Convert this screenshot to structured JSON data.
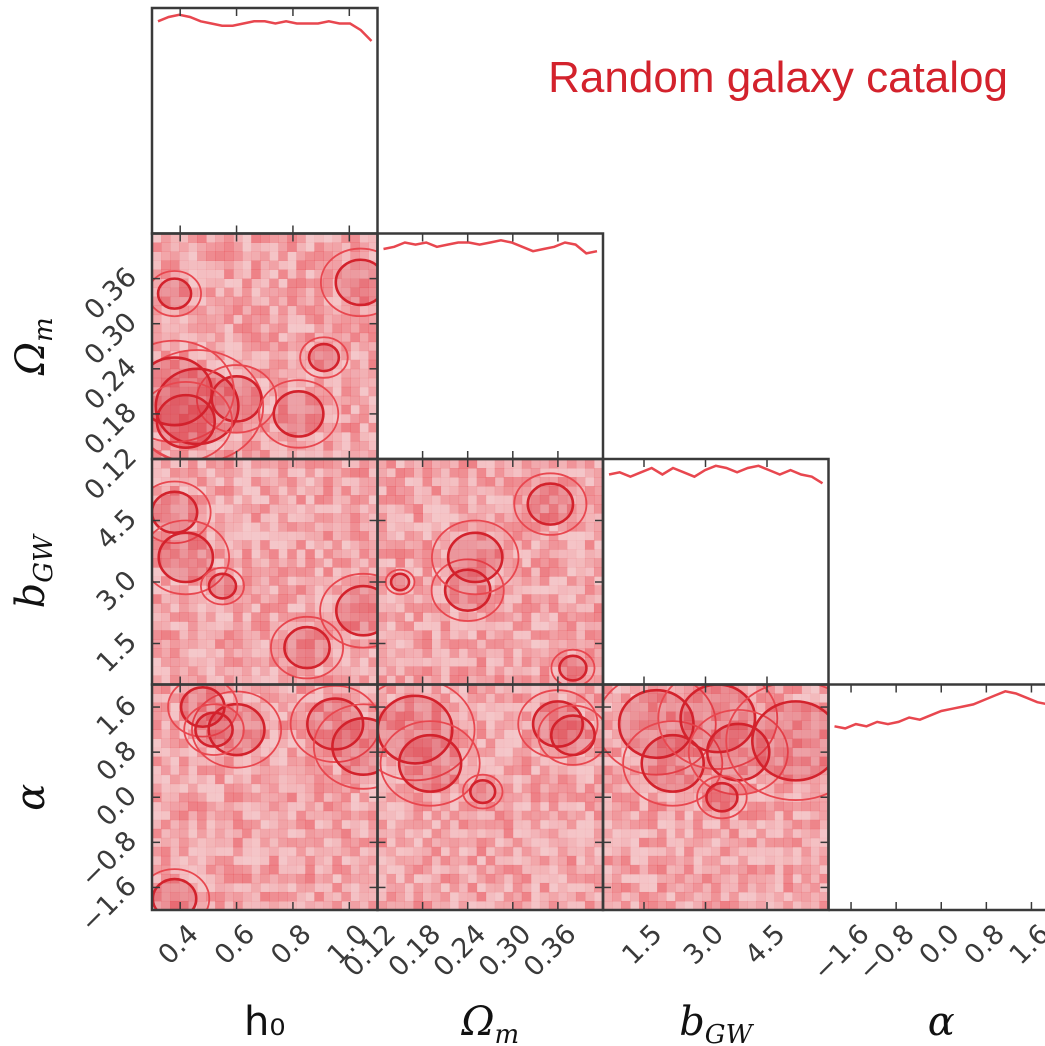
{
  "chart_data": {
    "type": "corner",
    "legend": "Random galaxy catalog",
    "color": "#e8474f",
    "contour_dark": "#d3222c",
    "params": [
      {
        "name": "h0",
        "range": [
          0.3,
          1.1
        ],
        "ticks": [
          0.4,
          0.6,
          0.8,
          1.0
        ],
        "tick_labels": [
          "0.4",
          "0.6",
          "0.8",
          "1.0"
        ]
      },
      {
        "name": "Omega_m",
        "range": [
          0.12,
          0.42
        ],
        "ticks": [
          0.12,
          0.18,
          0.24,
          0.3,
          0.36
        ],
        "tick_labels": [
          "0.12",
          "0.18",
          "0.24",
          "0.30",
          "0.36"
        ]
      },
      {
        "name": "b_GW",
        "range": [
          0.5,
          6.0
        ],
        "ticks": [
          1.5,
          3.0,
          4.5
        ],
        "tick_labels": [
          "1.5",
          "3.0",
          "4.5"
        ]
      },
      {
        "name": "alpha",
        "range": [
          -2.0,
          2.0
        ],
        "ticks": [
          -1.6,
          -0.8,
          0.0,
          0.8,
          1.6
        ],
        "tick_labels": [
          "−1.6",
          "−0.8",
          "0.0",
          "0.8",
          "1.6"
        ]
      }
    ],
    "axis_labels": {
      "x": [
        "h₀",
        "Ω",
        "b",
        "α"
      ],
      "x_subscripts": [
        "",
        "m",
        "GW",
        ""
      ],
      "y": [
        "Ω",
        "b",
        "α"
      ],
      "y_subscripts": [
        "m",
        "GW",
        ""
      ]
    },
    "marginals": [
      [
        0.97,
        0.99,
        1.0,
        0.99,
        0.97,
        0.96,
        0.95,
        0.95,
        0.96,
        0.97,
        0.97,
        0.96,
        0.97,
        0.96,
        0.96,
        0.96,
        0.97,
        0.96,
        0.96,
        0.93,
        0.88
      ],
      [
        0.96,
        0.97,
        0.99,
        0.98,
        0.99,
        0.97,
        0.98,
        0.99,
        0.99,
        0.98,
        0.99,
        1.0,
        0.99,
        0.97,
        0.95,
        0.96,
        0.97,
        0.99,
        0.98,
        0.94,
        0.95
      ],
      [
        0.96,
        0.97,
        0.95,
        0.97,
        0.99,
        0.96,
        0.99,
        0.97,
        0.95,
        0.98,
        1.0,
        0.99,
        0.97,
        0.99,
        1.0,
        0.98,
        0.96,
        0.98,
        0.96,
        0.95,
        0.92
      ],
      [
        0.84,
        0.83,
        0.85,
        0.84,
        0.86,
        0.85,
        0.86,
        0.88,
        0.87,
        0.89,
        0.91,
        0.92,
        0.93,
        0.94,
        0.96,
        0.98,
        1.0,
        0.99,
        0.97,
        0.95,
        0.94
      ]
    ],
    "contours": [
      {
        "row": 1,
        "col": 0,
        "x": [
          0.46,
          0.6
        ],
        "y": [
          0.19,
          0.2
        ],
        "r": [
          0.05,
          0.03
        ]
      },
      {
        "row": 1,
        "col": 0,
        "x": [
          0.38
        ],
        "y": [
          0.34
        ],
        "r": [
          0.02
        ]
      },
      {
        "row": 1,
        "col": 0,
        "x": [
          1.04
        ],
        "y": [
          0.355
        ],
        "r": [
          0.03
        ]
      },
      {
        "row": 1,
        "col": 0,
        "x": [
          0.38,
          0.42
        ],
        "y": [
          0.21,
          0.17
        ],
        "r": [
          0.045,
          0.035
        ]
      },
      {
        "row": 1,
        "col": 0,
        "x": [
          0.82
        ],
        "y": [
          0.18
        ],
        "r": [
          0.03
        ]
      },
      {
        "row": 1,
        "col": 0,
        "x": [
          0.91
        ],
        "y": [
          0.255
        ],
        "r": [
          0.018
        ]
      },
      {
        "row": 2,
        "col": 0,
        "x": [
          0.38,
          0.42
        ],
        "y": [
          4.7,
          3.6
        ],
        "r": [
          0.5,
          0.6
        ]
      },
      {
        "row": 2,
        "col": 0,
        "x": [
          0.55
        ],
        "y": [
          2.9
        ],
        "r": [
          0.3
        ]
      },
      {
        "row": 2,
        "col": 0,
        "x": [
          0.85
        ],
        "y": [
          1.4
        ],
        "r": [
          0.5
        ]
      },
      {
        "row": 2,
        "col": 0,
        "x": [
          1.05
        ],
        "y": [
          2.3
        ],
        "r": [
          0.6
        ]
      },
      {
        "row": 2,
        "col": 1,
        "x": [
          0.24,
          0.25
        ],
        "y": [
          2.8,
          3.6
        ],
        "r": [
          0.5,
          0.6
        ]
      },
      {
        "row": 2,
        "col": 1,
        "x": [
          0.35
        ],
        "y": [
          4.9
        ],
        "r": [
          0.5
        ]
      },
      {
        "row": 2,
        "col": 1,
        "x": [
          0.15
        ],
        "y": [
          3.0
        ],
        "r": [
          0.2
        ]
      },
      {
        "row": 2,
        "col": 1,
        "x": [
          0.38
        ],
        "y": [
          0.9
        ],
        "r": [
          0.3
        ]
      },
      {
        "row": 3,
        "col": 0,
        "x": [
          0.6
        ],
        "y": [
          1.2
        ],
        "r": [
          0.45
        ]
      },
      {
        "row": 3,
        "col": 0,
        "x": [
          0.95,
          1.05
        ],
        "y": [
          1.3,
          0.9
        ],
        "r": [
          0.45,
          0.5
        ]
      },
      {
        "row": 3,
        "col": 0,
        "x": [
          0.48,
          0.52
        ],
        "y": [
          1.6,
          1.2
        ],
        "r": [
          0.35,
          0.3
        ]
      },
      {
        "row": 3,
        "col": 0,
        "x": [
          0.38
        ],
        "y": [
          -1.8
        ],
        "r": [
          0.35
        ]
      },
      {
        "row": 3,
        "col": 1,
        "x": [
          0.17,
          0.19
        ],
        "y": [
          1.2,
          0.6
        ],
        "r": [
          0.6,
          0.5
        ]
      },
      {
        "row": 3,
        "col": 1,
        "x": [
          0.36,
          0.38
        ],
        "y": [
          1.3,
          1.1
        ],
        "r": [
          0.4,
          0.35
        ]
      },
      {
        "row": 3,
        "col": 1,
        "x": [
          0.26
        ],
        "y": [
          0.1
        ],
        "r": [
          0.2
        ]
      },
      {
        "row": 3,
        "col": 2,
        "x": [
          1.8,
          2.2
        ],
        "y": [
          1.3,
          0.6
        ],
        "r": [
          0.6,
          0.5
        ]
      },
      {
        "row": 3,
        "col": 2,
        "x": [
          3.3,
          3.8
        ],
        "y": [
          1.4,
          0.8
        ],
        "r": [
          0.6,
          0.5
        ]
      },
      {
        "row": 3,
        "col": 2,
        "x": [
          5.2
        ],
        "y": [
          1.0
        ],
        "r": [
          0.7
        ]
      },
      {
        "row": 3,
        "col": 2,
        "x": [
          3.4
        ],
        "y": [
          0.0
        ],
        "r": [
          0.25
        ]
      }
    ]
  }
}
